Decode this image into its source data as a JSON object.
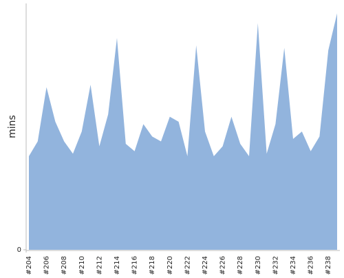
{
  "chart_data": {
    "type": "area",
    "y_label": "mins",
    "categories": [
      "#204",
      null,
      "#206",
      null,
      "#208",
      null,
      "#210",
      null,
      "#212",
      null,
      "#214",
      null,
      "#216",
      null,
      "#218",
      null,
      "#220",
      null,
      "#222",
      null,
      "#224",
      null,
      "#226",
      null,
      "#228",
      null,
      "#230",
      null,
      "#232",
      null,
      "#234",
      null,
      "#236",
      null,
      "#238",
      null
    ],
    "values": [
      38,
      44,
      66,
      52,
      44,
      39,
      48,
      67,
      42,
      55,
      86,
      43,
      40,
      51,
      46,
      44,
      54,
      52,
      38,
      83,
      48,
      38,
      42,
      54,
      43,
      38,
      92,
      39,
      51,
      82,
      45,
      48,
      40,
      46,
      81,
      96
    ],
    "color": "#92b4dd",
    "ylim": [
      0,
      100
    ],
    "yticks": [
      0
    ]
  }
}
